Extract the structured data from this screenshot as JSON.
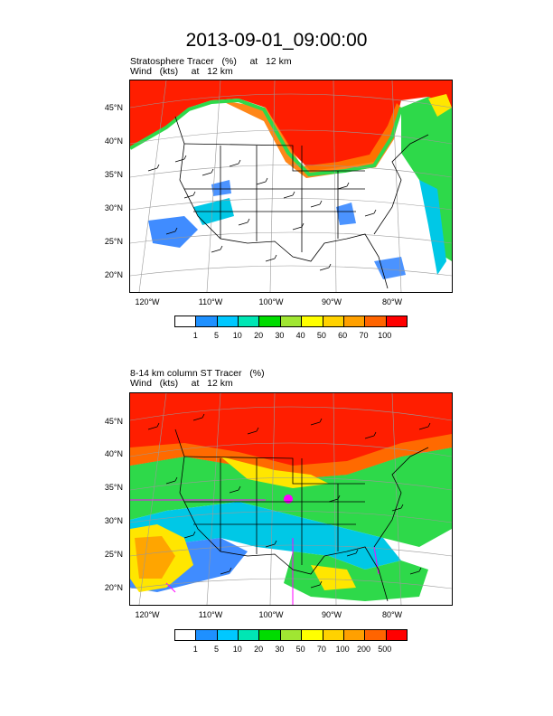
{
  "title": "2013-09-01_09:00:00",
  "panels": [
    {
      "line1": "Stratosphere Tracer   (%)     at   12 km",
      "line2": "Wind   (kts)     at   12 km",
      "lat_labels": [
        "45°N",
        "40°N",
        "35°N",
        "30°N",
        "25°N",
        "20°N"
      ],
      "lon_labels": [
        "120°W",
        "110°W",
        "100°W",
        "90°W",
        "80°W"
      ],
      "colorbar_labels": [
        "1",
        "5",
        "10",
        "20",
        "30",
        "40",
        "50",
        "60",
        "70",
        "100"
      ]
    },
    {
      "line1": "8-14 km column ST Tracer   (%)",
      "line2": "Wind   (kts)     at   12 km",
      "lat_labels": [
        "45°N",
        "40°N",
        "35°N",
        "30°N",
        "25°N",
        "20°N"
      ],
      "lon_labels": [
        "120°W",
        "110°W",
        "100°W",
        "90°W",
        "80°W"
      ],
      "colorbar_labels": [
        "1",
        "5",
        "10",
        "20",
        "30",
        "50",
        "70",
        "100",
        "200",
        "500"
      ]
    }
  ],
  "colorbar_colors": [
    "#ffffff",
    "#1e90ff",
    "#00c8ff",
    "#00e6b4",
    "#00dc00",
    "#a0e632",
    "#ffff00",
    "#ffd200",
    "#ffa000",
    "#ff6400",
    "#ff0000"
  ],
  "map_colors": {
    "high": "#ff1e00",
    "mid": "#ff6a00",
    "orange": "#ffa500",
    "yellow": "#ffe600",
    "green": "#2ed94a",
    "cyan": "#00c8e6",
    "blue": "#1e78ff",
    "magenta": "#ff00ff"
  }
}
